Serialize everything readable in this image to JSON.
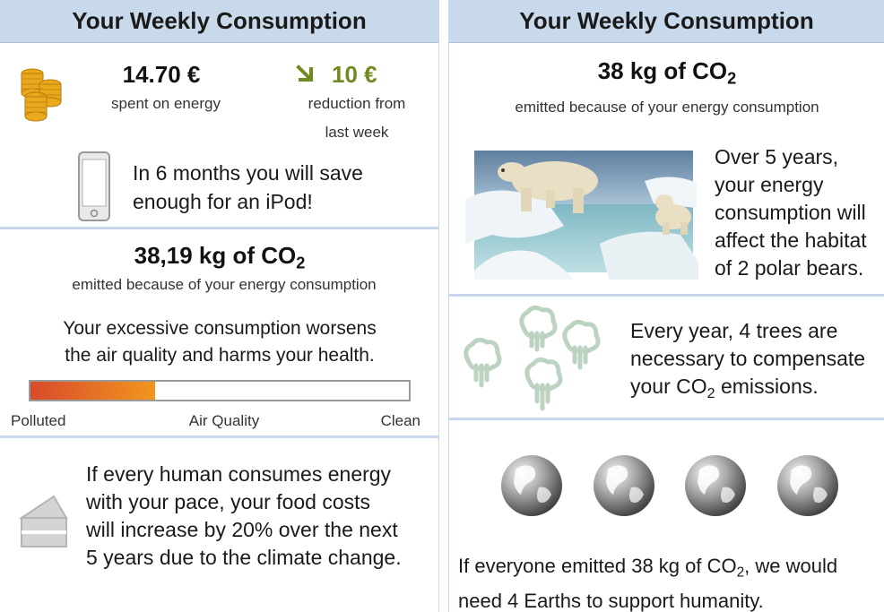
{
  "left": {
    "title": "Your Weekly Consumption",
    "spent_value": "14.70 €",
    "spent_label": "spent on energy",
    "reduction_value": "10 €",
    "reduction_label_line1": "reduction from",
    "reduction_label_line2": "last week",
    "ipod_line1": "In 6 months you will save",
    "ipod_line2": "enough for an iPod!",
    "co2_prefix": "38,19 kg of CO",
    "co2_sub": "2",
    "co2_label": "emitted because of your energy consumption",
    "health_line1": "Your excessive consumption worsens",
    "health_line2": "the air quality and harms your health.",
    "air_quality": {
      "fraction": 0.33,
      "label_left": "Polluted",
      "label_center": "Air Quality",
      "label_right": "Clean"
    },
    "food_line1": "If every human consumes energy",
    "food_line2": "with your pace, your food costs",
    "food_line3": "will increase by 20% over the next",
    "food_line4": "5 years due to the climate change."
  },
  "right": {
    "title": "Your Weekly Consumption",
    "co2_prefix": "38 kg of CO",
    "co2_sub": "2",
    "co2_label": "emitted because of your energy consumption",
    "bears_line1": "Over 5 years,",
    "bears_line2": "your energy",
    "bears_line3": "consumption will",
    "bears_line4": "affect the habitat",
    "bears_line5": "of 2 polar bears.",
    "trees_line1": "Every year, 4 trees are",
    "trees_line2": "necessary to compensate",
    "trees_line3_prefix": "your CO",
    "trees_line3_sub": "2",
    "trees_line3_suffix": " emissions.",
    "earth_line1_prefix": "If everyone emitted 38 kg of CO",
    "earth_line1_sub": "2",
    "earth_line1_suffix": ", we would",
    "earth_line2": "need 4 Earths to support humanity."
  },
  "colors": {
    "header_bg": "#c9d9ec",
    "divider": "#c8d7eb",
    "reduction_green": "#6f8b1f",
    "coin_gold": "#e8a91c",
    "bar_red": "#d84a2c",
    "bar_orange": "#f2961e",
    "tree_green": "#bcd3c2"
  },
  "icons": [
    "coins-icon",
    "down-arrow-icon",
    "phone-icon",
    "cake-icon",
    "polar-bear-image",
    "tree-icon",
    "globe-icon"
  ]
}
